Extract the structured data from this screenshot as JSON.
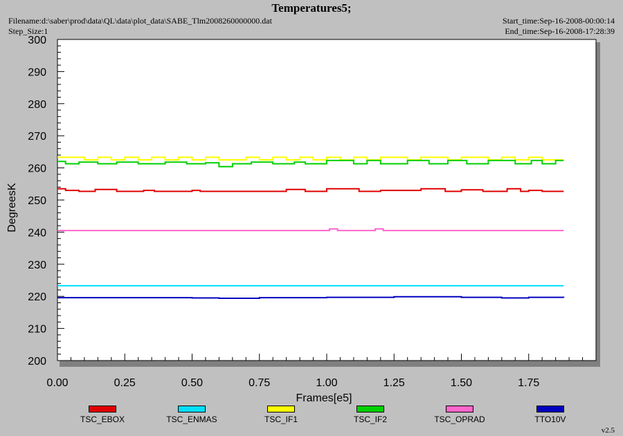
{
  "header": {
    "title": "Temperatures5;",
    "filename": "Filename:d:\\saber\\prod\\data\\QL\\data\\plot_data\\SABE_Tlm2008260000000.dat",
    "step_size": "Step_Size:1",
    "start_time": "Start_time:Sep-16-2008-00:00:14",
    "end_time": "End_time:Sep-16-2008-17:28:39"
  },
  "version": "v2.5",
  "chart_data": {
    "type": "line",
    "title": "Temperatures5;",
    "xlabel": "Frames[e5]",
    "ylabel": "DegreesK",
    "xlim": [
      0,
      2.0
    ],
    "ylim": [
      200,
      300
    ],
    "x_ticks": [
      "0.00",
      "0.25",
      "0.50",
      "0.75",
      "1.00",
      "1.25",
      "1.50",
      "1.75"
    ],
    "y_ticks": [
      "200",
      "210",
      "220",
      "230",
      "240",
      "250",
      "260",
      "270",
      "280",
      "290",
      "300"
    ],
    "x_tick_values": [
      0,
      0.25,
      0.5,
      0.75,
      1.0,
      1.25,
      1.5,
      1.75
    ],
    "y_tick_values": [
      200,
      210,
      220,
      230,
      240,
      250,
      260,
      270,
      280,
      290,
      300
    ],
    "grid": false,
    "legend_position": "bottom",
    "background": "#ffffff",
    "series": [
      {
        "name": "TSC_EBOX",
        "color": "#e00000",
        "x": [
          0,
          0.03,
          0.08,
          0.14,
          0.22,
          0.32,
          0.36,
          0.5,
          0.53,
          0.85,
          0.92,
          1.0,
          1.12,
          1.2,
          1.35,
          1.44,
          1.5,
          1.58,
          1.67,
          1.72,
          1.75,
          1.8,
          1.88
        ],
        "y": [
          253.5,
          253.0,
          252.7,
          253.3,
          252.7,
          253.0,
          252.7,
          253.0,
          252.7,
          253.3,
          252.7,
          253.5,
          252.7,
          253.0,
          253.5,
          252.7,
          253.2,
          252.7,
          253.5,
          252.7,
          253.0,
          252.7,
          252.7
        ]
      },
      {
        "name": "TSC_ENMAS",
        "color": "#00e0ff",
        "x": [
          0,
          1.88
        ],
        "y": [
          223.3,
          223.3
        ]
      },
      {
        "name": "TSC_IF1",
        "color": "#ffff00",
        "x": [
          0,
          0.05,
          0.1,
          0.15,
          0.2,
          0.25,
          0.3,
          0.35,
          0.4,
          0.45,
          0.5,
          0.55,
          0.6,
          0.65,
          0.7,
          0.75,
          0.8,
          0.85,
          0.9,
          0.95,
          1.0,
          1.05,
          1.1,
          1.15,
          1.2,
          1.25,
          1.3,
          1.35,
          1.4,
          1.45,
          1.5,
          1.55,
          1.6,
          1.65,
          1.7,
          1.75,
          1.8,
          1.85,
          1.88
        ],
        "y": [
          263.3,
          263.3,
          262.5,
          263.3,
          262.5,
          263.3,
          262.5,
          263.3,
          262.5,
          263.3,
          262.5,
          263.3,
          262.5,
          262.5,
          263.3,
          262.5,
          263.3,
          262.5,
          263.3,
          262.5,
          263.3,
          262.5,
          263.3,
          262.5,
          263.3,
          263.3,
          262.5,
          263.3,
          263.3,
          262.5,
          263.3,
          263.3,
          262.5,
          263.3,
          262.5,
          263.3,
          262.5,
          262.5,
          262.5
        ]
      },
      {
        "name": "TSC_IF2",
        "color": "#00d000",
        "x": [
          0,
          0.03,
          0.08,
          0.15,
          0.22,
          0.3,
          0.4,
          0.48,
          0.55,
          0.6,
          0.65,
          0.72,
          0.8,
          0.88,
          0.92,
          1.0,
          1.1,
          1.15,
          1.2,
          1.3,
          1.38,
          1.45,
          1.52,
          1.6,
          1.7,
          1.76,
          1.8,
          1.85,
          1.88
        ],
        "y": [
          262.0,
          261.3,
          261.8,
          261.3,
          261.8,
          261.3,
          261.8,
          261.3,
          261.6,
          260.4,
          261.3,
          261.8,
          261.3,
          261.8,
          261.3,
          262.3,
          261.3,
          262.3,
          261.3,
          262.3,
          261.3,
          262.3,
          261.3,
          262.3,
          261.3,
          262.3,
          261.3,
          262.3,
          262.3
        ]
      },
      {
        "name": "TSC_OPRAD",
        "color": "#ff66cc",
        "x": [
          0,
          1.0,
          1.01,
          1.03,
          1.04,
          1.17,
          1.18,
          1.2,
          1.21,
          1.88
        ],
        "y": [
          240.5,
          240.5,
          241.0,
          241.0,
          240.5,
          240.5,
          241.0,
          241.0,
          240.5,
          240.5
        ]
      },
      {
        "name": "TTO10V",
        "color": "#0000c0",
        "x": [
          0,
          0.25,
          0.5,
          0.6,
          0.75,
          1.0,
          1.25,
          1.5,
          1.65,
          1.75,
          1.88
        ],
        "y": [
          219.6,
          219.6,
          219.5,
          219.4,
          219.6,
          219.7,
          219.9,
          219.7,
          219.5,
          219.7,
          219.6
        ]
      }
    ]
  }
}
